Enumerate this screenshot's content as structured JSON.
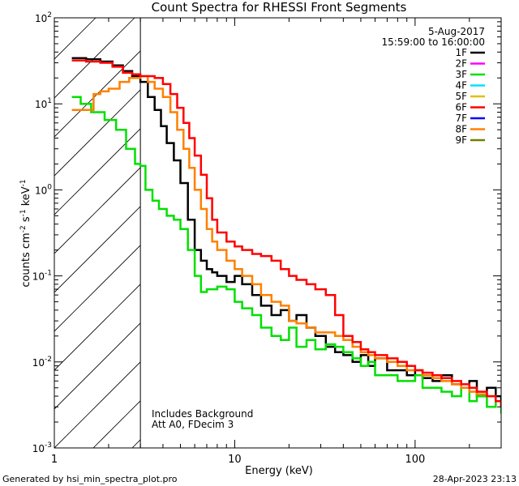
{
  "chart_data": {
    "type": "line",
    "title": "Count Spectra for RHESSI Front Segments",
    "xlabel": "Energy (keV)",
    "ylabel": "counts cm-2 s-1 keV-1",
    "xscale": "log",
    "yscale": "log",
    "xlim": [
      1,
      300
    ],
    "ylim": [
      0.001,
      100
    ],
    "x_tick_labels": [
      "1",
      "10",
      "100"
    ],
    "y_tick_exponents": [
      "-3",
      "-2",
      "-1",
      "0",
      "1",
      "2"
    ],
    "hatched_region_max_energy": 3.0,
    "date": "5-Aug-2017",
    "time_range": "15:59:00 to 16:00:00",
    "annotation_lines": [
      "Includes Background",
      "Att A0, FDecim 3"
    ],
    "footer_left": "Generated by hsi_min_spectra_plot.pro",
    "footer_right": "28-Apr-2023 23:13",
    "legend": [
      {
        "name": "1F",
        "color": "#000000"
      },
      {
        "name": "2F",
        "color": "#ff00ff"
      },
      {
        "name": "3F",
        "color": "#00e000"
      },
      {
        "name": "4F",
        "color": "#00e0ff"
      },
      {
        "name": "5F",
        "color": "#e0c000"
      },
      {
        "name": "6F",
        "color": "#ff0000"
      },
      {
        "name": "7F",
        "color": "#0000ff"
      },
      {
        "name": "8F",
        "color": "#ff8000"
      },
      {
        "name": "9F",
        "color": "#708000"
      }
    ],
    "series": [
      {
        "name": "1F",
        "color": "#000000",
        "points": [
          [
            1.25,
            34
          ],
          [
            1.5,
            33
          ],
          [
            1.8,
            31
          ],
          [
            2.1,
            28
          ],
          [
            2.4,
            24
          ],
          [
            2.7,
            21
          ],
          [
            3.0,
            18
          ],
          [
            3.3,
            12
          ],
          [
            3.6,
            8.5
          ],
          [
            3.9,
            5.5
          ],
          [
            4.2,
            3.5
          ],
          [
            4.6,
            2.2
          ],
          [
            5.0,
            1.2
          ],
          [
            5.5,
            0.45
          ],
          [
            6.0,
            0.2
          ],
          [
            6.5,
            0.15
          ],
          [
            7.0,
            0.12
          ],
          [
            7.5,
            0.11
          ],
          [
            8.0,
            0.1
          ],
          [
            9.0,
            0.085
          ],
          [
            10.0,
            0.1
          ],
          [
            11.0,
            0.08
          ],
          [
            12.5,
            0.06
          ],
          [
            14,
            0.045
          ],
          [
            16,
            0.035
          ],
          [
            18,
            0.04
          ],
          [
            20,
            0.03
          ],
          [
            22,
            0.035
          ],
          [
            25,
            0.025
          ],
          [
            28,
            0.02
          ],
          [
            32,
            0.015
          ],
          [
            36,
            0.013
          ],
          [
            40,
            0.012
          ],
          [
            45,
            0.01
          ],
          [
            50,
            0.012
          ],
          [
            55,
            0.009
          ],
          [
            60,
            0.011
          ],
          [
            70,
            0.008
          ],
          [
            80,
            0.008
          ],
          [
            90,
            0.007
          ],
          [
            100,
            0.008
          ],
          [
            110,
            0.0065
          ],
          [
            125,
            0.006
          ],
          [
            140,
            0.007
          ],
          [
            160,
            0.0055
          ],
          [
            180,
            0.005
          ],
          [
            200,
            0.006
          ],
          [
            220,
            0.004
          ],
          [
            250,
            0.005
          ],
          [
            280,
            0.004
          ],
          [
            300,
            0.003
          ]
        ]
      },
      {
        "name": "3F",
        "color": "#00e000",
        "points": [
          [
            1.25,
            12
          ],
          [
            1.4,
            10
          ],
          [
            1.6,
            8
          ],
          [
            1.9,
            6.5
          ],
          [
            2.2,
            5
          ],
          [
            2.5,
            3
          ],
          [
            2.8,
            2
          ],
          [
            3.0,
            1.9
          ],
          [
            3.2,
            1.0
          ],
          [
            3.5,
            0.75
          ],
          [
            3.8,
            0.6
          ],
          [
            4.2,
            0.5
          ],
          [
            4.6,
            0.45
          ],
          [
            5.0,
            0.35
          ],
          [
            5.5,
            0.2
          ],
          [
            6.0,
            0.1
          ],
          [
            6.5,
            0.065
          ],
          [
            7.0,
            0.07
          ],
          [
            8.0,
            0.075
          ],
          [
            9.0,
            0.07
          ],
          [
            10.0,
            0.05
          ],
          [
            11.0,
            0.042
          ],
          [
            12.5,
            0.035
          ],
          [
            14,
            0.025
          ],
          [
            16,
            0.02
          ],
          [
            18,
            0.018
          ],
          [
            20,
            0.025
          ],
          [
            22,
            0.015
          ],
          [
            25,
            0.018
          ],
          [
            28,
            0.014
          ],
          [
            32,
            0.016
          ],
          [
            36,
            0.015
          ],
          [
            40,
            0.013
          ],
          [
            45,
            0.011
          ],
          [
            50,
            0.009
          ],
          [
            55,
            0.01
          ],
          [
            60,
            0.007
          ],
          [
            70,
            0.007
          ],
          [
            80,
            0.006
          ],
          [
            90,
            0.006
          ],
          [
            100,
            0.007
          ],
          [
            110,
            0.005
          ],
          [
            125,
            0.005
          ],
          [
            140,
            0.0045
          ],
          [
            160,
            0.004
          ],
          [
            180,
            0.005
          ],
          [
            200,
            0.0035
          ],
          [
            220,
            0.004
          ],
          [
            250,
            0.003
          ],
          [
            280,
            0.0035
          ],
          [
            300,
            0.0025
          ]
        ]
      },
      {
        "name": "8F",
        "color": "#ff8000",
        "points": [
          [
            1.25,
            8.5
          ],
          [
            1.5,
            8.5
          ],
          [
            1.65,
            13
          ],
          [
            1.8,
            14
          ],
          [
            2.0,
            15
          ],
          [
            2.3,
            18
          ],
          [
            2.6,
            20
          ],
          [
            3.0,
            21
          ],
          [
            3.3,
            18
          ],
          [
            3.6,
            15
          ],
          [
            4.0,
            12
          ],
          [
            4.4,
            8
          ],
          [
            4.8,
            5
          ],
          [
            5.2,
            3
          ],
          [
            5.6,
            1.8
          ],
          [
            6.0,
            1.0
          ],
          [
            6.5,
            0.6
          ],
          [
            7.0,
            0.35
          ],
          [
            7.5,
            0.25
          ],
          [
            8.0,
            0.2
          ],
          [
            9.0,
            0.15
          ],
          [
            10.0,
            0.12
          ],
          [
            11.0,
            0.1
          ],
          [
            12.5,
            0.08
          ],
          [
            14,
            0.06
          ],
          [
            16,
            0.05
          ],
          [
            18,
            0.045
          ],
          [
            20,
            0.03
          ],
          [
            22,
            0.028
          ],
          [
            25,
            0.025
          ],
          [
            28,
            0.022
          ],
          [
            32,
            0.022
          ],
          [
            36,
            0.02
          ],
          [
            40,
            0.018
          ],
          [
            45,
            0.015
          ],
          [
            50,
            0.013
          ],
          [
            55,
            0.012
          ],
          [
            60,
            0.011
          ],
          [
            70,
            0.01
          ],
          [
            80,
            0.009
          ],
          [
            90,
            0.008
          ],
          [
            100,
            0.008
          ],
          [
            110,
            0.007
          ],
          [
            125,
            0.0065
          ],
          [
            140,
            0.006
          ],
          [
            160,
            0.0055
          ],
          [
            180,
            0.005
          ],
          [
            200,
            0.0045
          ],
          [
            220,
            0.0042
          ],
          [
            250,
            0.004
          ],
          [
            280,
            0.0035
          ],
          [
            300,
            0.003
          ]
        ]
      },
      {
        "name": "6F",
        "color": "#ff0000",
        "points": [
          [
            1.25,
            32
          ],
          [
            1.5,
            31
          ],
          [
            1.8,
            30
          ],
          [
            2.1,
            27
          ],
          [
            2.4,
            23
          ],
          [
            2.7,
            22
          ],
          [
            3.0,
            21
          ],
          [
            3.3,
            21
          ],
          [
            3.6,
            20
          ],
          [
            4.0,
            17
          ],
          [
            4.4,
            13
          ],
          [
            4.8,
            9
          ],
          [
            5.2,
            6
          ],
          [
            5.6,
            4
          ],
          [
            6.0,
            2.5
          ],
          [
            6.5,
            1.5
          ],
          [
            7.0,
            0.8
          ],
          [
            7.5,
            0.45
          ],
          [
            8.0,
            0.32
          ],
          [
            9.0,
            0.25
          ],
          [
            10.0,
            0.22
          ],
          [
            11.0,
            0.2
          ],
          [
            12.5,
            0.18
          ],
          [
            14,
            0.17
          ],
          [
            16,
            0.15
          ],
          [
            18,
            0.12
          ],
          [
            20,
            0.1
          ],
          [
            22,
            0.09
          ],
          [
            25,
            0.08
          ],
          [
            28,
            0.07
          ],
          [
            32,
            0.06
          ],
          [
            36,
            0.035
          ],
          [
            40,
            0.02
          ],
          [
            45,
            0.017
          ],
          [
            50,
            0.014
          ],
          [
            55,
            0.013
          ],
          [
            60,
            0.012
          ],
          [
            70,
            0.011
          ],
          [
            80,
            0.01
          ],
          [
            90,
            0.009
          ],
          [
            100,
            0.008
          ],
          [
            110,
            0.0075
          ],
          [
            125,
            0.007
          ],
          [
            140,
            0.0065
          ],
          [
            160,
            0.006
          ],
          [
            180,
            0.0055
          ],
          [
            200,
            0.005
          ],
          [
            220,
            0.0045
          ],
          [
            250,
            0.004
          ],
          [
            280,
            0.0035
          ],
          [
            300,
            0.003
          ]
        ]
      }
    ]
  }
}
